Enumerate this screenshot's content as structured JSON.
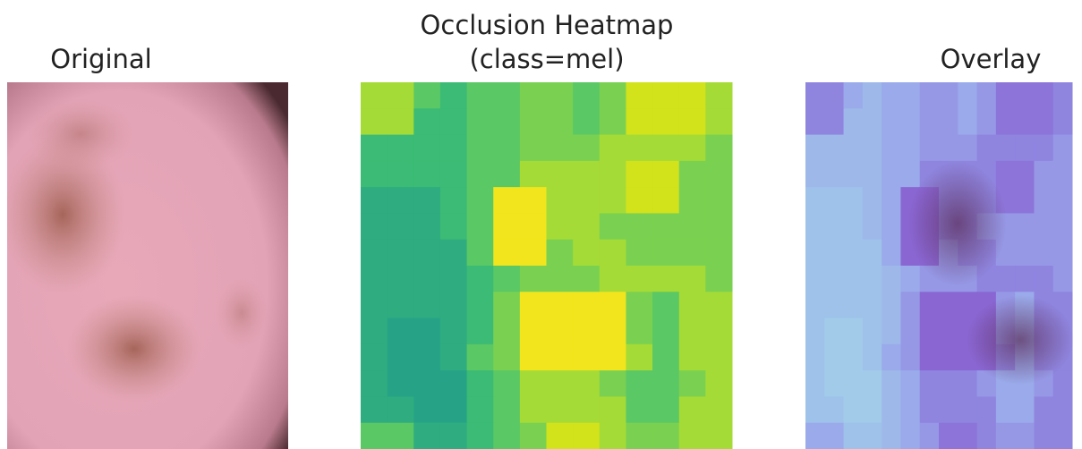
{
  "panels": [
    {
      "title_lines": [
        "Original"
      ]
    },
    {
      "title_lines": [
        "Occlusion Heatmap",
        "(class=mel)"
      ]
    },
    {
      "title_lines": [
        "Overlay"
      ]
    }
  ]
}
